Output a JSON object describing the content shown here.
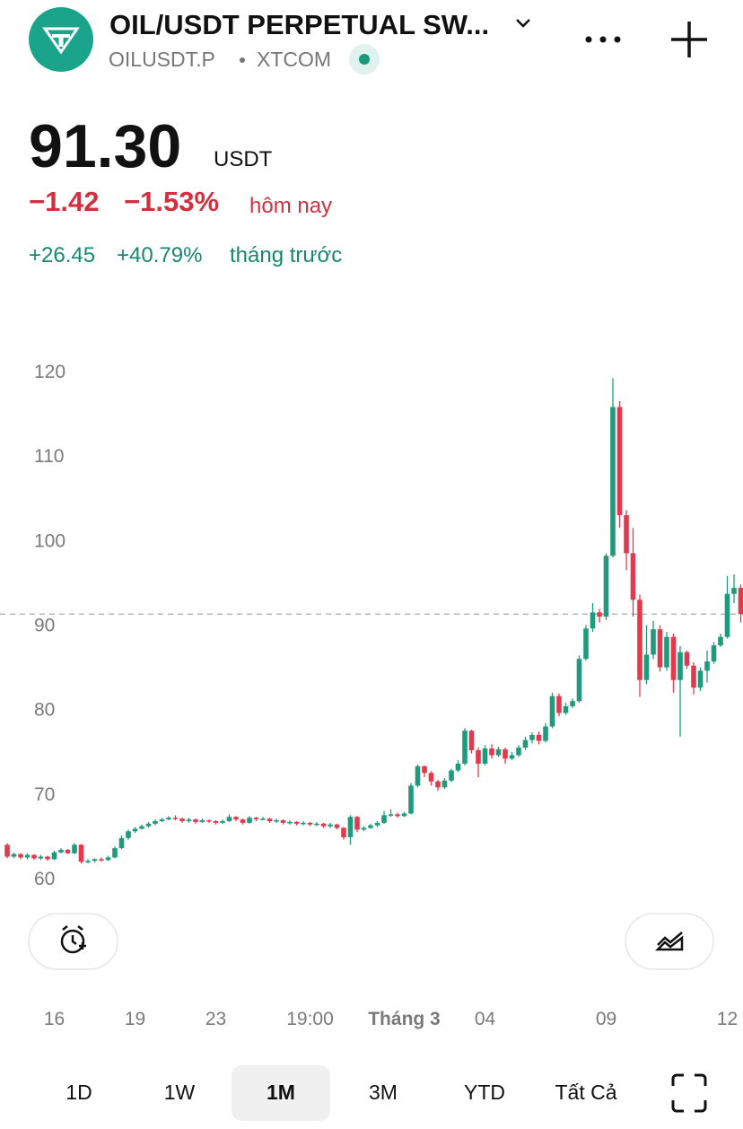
{
  "header": {
    "title": "OIL/USDT PERPETUAL SW...",
    "symbol": "OILUSDT.P",
    "exchange": "XTCOM",
    "price": "91.30",
    "currency": "USDT",
    "day_change": "−1.42",
    "day_change_pct": "−1.53%",
    "day_label": "hôm nay",
    "month_change": "+26.45",
    "month_change_pct": "+40.79%",
    "month_label": "tháng trước"
  },
  "ranges": [
    "1D",
    "1W",
    "1M",
    "3M",
    "YTD",
    "Tất Cả"
  ],
  "chart_data": {
    "type": "candlestick",
    "up_color": "#1f9a7c",
    "down_color": "#e23a4c",
    "last_price": 91.3,
    "ylim": [
      60,
      120
    ],
    "yticks": [
      60,
      70,
      80,
      90,
      100,
      110,
      120
    ],
    "categories": [
      null,
      null,
      null,
      null,
      null,
      null,
      null,
      "16",
      null,
      null,
      null,
      null,
      null,
      null,
      null,
      null,
      null,
      null,
      null,
      "19",
      null,
      null,
      null,
      null,
      null,
      null,
      null,
      null,
      null,
      null,
      null,
      "23",
      null,
      null,
      null,
      null,
      null,
      null,
      null,
      null,
      null,
      null,
      null,
      null,
      null,
      "19:00",
      null,
      null,
      null,
      null,
      null,
      null,
      null,
      null,
      null,
      null,
      null,
      null,
      null,
      "Tháng 3",
      null,
      null,
      null,
      null,
      null,
      null,
      null,
      null,
      null,
      null,
      null,
      "04",
      null,
      null,
      null,
      null,
      null,
      null,
      null,
      null,
      null,
      null,
      null,
      null,
      null,
      null,
      null,
      null,
      null,
      "09",
      null,
      null,
      null,
      null,
      null,
      null,
      null,
      null,
      null,
      null,
      null,
      null,
      null,
      null,
      null,
      null,
      null,
      "12",
      null,
      null
    ],
    "open": [
      64.0,
      62.6,
      62.9,
      62.5,
      62.8,
      62.4,
      62.6,
      62.3,
      63.1,
      63.4,
      63.0,
      64.0,
      62.0,
      62.1,
      62.3,
      62.2,
      62.5,
      63.6,
      64.8,
      65.6,
      65.9,
      66.2,
      66.5,
      66.8,
      67.0,
      67.2,
      67.1,
      66.8,
      67.0,
      66.7,
      66.9,
      66.8,
      66.6,
      66.8,
      67.3,
      67.0,
      66.6,
      67.2,
      67.0,
      67.1,
      66.8,
      66.9,
      66.6,
      66.7,
      66.5,
      66.6,
      66.4,
      66.5,
      66.2,
      66.4,
      66.0,
      64.9,
      67.3,
      65.8,
      66.0,
      66.3,
      66.6,
      67.5,
      67.6,
      67.4,
      67.7,
      71.0,
      73.3,
      72.5,
      71.5,
      70.8,
      71.6,
      72.8,
      73.6,
      77.5,
      75.2,
      73.6,
      75.4,
      74.6,
      75.3,
      74.2,
      74.6,
      75.5,
      76.4,
      77.0,
      76.3,
      78.0,
      81.6,
      79.6,
      80.4,
      81.0,
      86.0,
      89.6,
      91.5,
      91.0,
      98.2,
      115.8,
      103.0,
      98.5,
      93.0,
      83.5,
      86.5,
      89.5,
      85.0,
      88.6,
      83.5,
      86.8,
      85.2,
      82.6,
      84.6,
      85.7,
      87.6,
      88.6,
      93.7,
      94.4
    ],
    "high": [
      64.2,
      63.1,
      63.0,
      63.0,
      62.9,
      62.8,
      62.7,
      63.3,
      63.6,
      63.5,
      64.2,
      64.1,
      62.3,
      62.4,
      62.5,
      62.7,
      63.8,
      65.1,
      65.8,
      66.1,
      66.4,
      66.7,
      67.0,
      67.2,
      67.4,
      67.5,
      67.2,
      67.2,
      67.1,
      67.1,
      67.0,
      66.9,
      67.0,
      67.6,
      67.4,
      67.1,
      67.4,
      67.3,
      67.3,
      67.2,
      67.1,
      67.0,
      66.9,
      66.8,
      66.8,
      66.7,
      66.7,
      66.6,
      66.6,
      66.5,
      66.1,
      67.5,
      67.4,
      66.2,
      66.5,
      66.8,
      68.0,
      68.2,
      67.8,
      67.9,
      71.3,
      73.5,
      73.4,
      72.7,
      71.7,
      71.9,
      73.0,
      74.0,
      77.8,
      77.6,
      75.5,
      75.8,
      75.9,
      75.6,
      75.5,
      75.0,
      75.8,
      76.8,
      77.3,
      77.4,
      78.4,
      82.0,
      81.9,
      80.8,
      81.3,
      86.4,
      90.0,
      92.6,
      91.9,
      98.5,
      119.2,
      116.5,
      103.6,
      101.5,
      93.6,
      90.0,
      90.5,
      90.0,
      89.2,
      89.0,
      87.5,
      87.0,
      85.6,
      85.0,
      87.0,
      88.0,
      89.0,
      95.8,
      96.0,
      94.8
    ],
    "low": [
      62.4,
      62.4,
      62.3,
      62.3,
      62.2,
      62.2,
      62.1,
      62.2,
      63.0,
      62.9,
      62.9,
      61.8,
      61.8,
      61.9,
      62.0,
      62.1,
      62.4,
      63.5,
      64.6,
      65.4,
      65.8,
      66.0,
      66.3,
      66.7,
      66.9,
      66.9,
      66.6,
      66.6,
      66.5,
      66.6,
      66.6,
      66.4,
      66.5,
      66.7,
      66.8,
      66.4,
      66.5,
      66.8,
      66.9,
      66.6,
      66.6,
      66.4,
      66.4,
      66.3,
      66.3,
      66.2,
      66.2,
      66.0,
      66.0,
      65.8,
      64.6,
      64.0,
      65.5,
      65.6,
      65.9,
      66.1,
      66.5,
      67.3,
      67.2,
      67.3,
      67.6,
      70.8,
      72.0,
      71.0,
      70.4,
      70.6,
      71.4,
      72.6,
      73.4,
      74.8,
      72.0,
      73.4,
      74.2,
      74.4,
      73.6,
      74.0,
      74.4,
      75.2,
      76.0,
      75.9,
      76.1,
      77.8,
      79.2,
      79.4,
      80.2,
      80.8,
      85.8,
      89.2,
      90.3,
      90.6,
      98.0,
      101.5,
      96.5,
      91.0,
      81.5,
      83.0,
      86.0,
      84.5,
      84.6,
      82.0,
      76.8,
      84.8,
      81.8,
      82.2,
      83.2,
      85.4,
      87.4,
      88.4,
      92.6,
      90.3
    ],
    "close": [
      62.6,
      62.9,
      62.5,
      62.8,
      62.4,
      62.6,
      62.3,
      63.1,
      63.4,
      63.0,
      64.0,
      62.0,
      62.1,
      62.3,
      62.2,
      62.5,
      63.6,
      64.8,
      65.6,
      65.9,
      66.2,
      66.5,
      66.8,
      67.0,
      67.2,
      67.1,
      66.8,
      67.0,
      66.7,
      66.9,
      66.8,
      66.6,
      66.8,
      67.3,
      67.0,
      66.6,
      67.2,
      67.0,
      67.1,
      66.8,
      66.9,
      66.6,
      66.7,
      66.5,
      66.6,
      66.4,
      66.5,
      66.2,
      66.4,
      66.0,
      64.9,
      67.3,
      65.8,
      66.0,
      66.3,
      66.6,
      67.5,
      67.6,
      67.4,
      67.7,
      71.0,
      73.3,
      72.5,
      71.5,
      70.8,
      71.6,
      72.8,
      73.6,
      77.5,
      75.2,
      73.6,
      75.4,
      74.6,
      75.3,
      74.2,
      74.6,
      75.5,
      76.4,
      77.0,
      76.3,
      78.0,
      81.6,
      79.6,
      80.4,
      81.0,
      86.0,
      89.6,
      91.5,
      91.0,
      98.2,
      115.8,
      103.0,
      98.5,
      93.0,
      83.5,
      86.5,
      89.5,
      85.0,
      88.6,
      83.5,
      86.8,
      85.2,
      82.6,
      84.6,
      85.7,
      87.6,
      88.6,
      93.7,
      94.4,
      91.3
    ]
  }
}
